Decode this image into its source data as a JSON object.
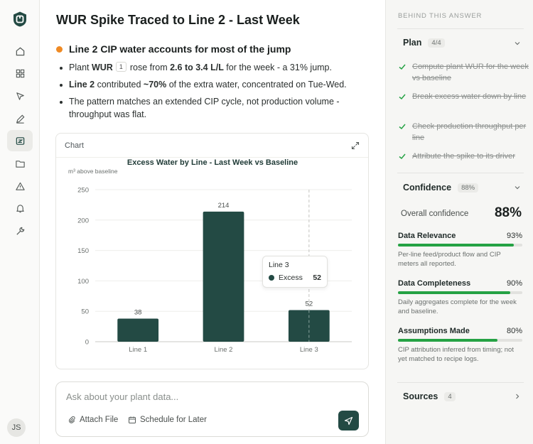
{
  "page": {
    "title": "WUR Spike Traced to Line 2 - Last Week",
    "headline": "Line 2 CIP water accounts for most of the jump",
    "bullet1": {
      "a": "Plant ",
      "b": "WUR",
      "cite": "1",
      "c": "rose from ",
      "d": "2.6 to 3.4 L/L",
      "e": " for the week - a 31% jump."
    },
    "bullet2": {
      "a": "Line 2",
      "b": " contributed ",
      "c": "~70%",
      "d": " of the extra water, concentrated on Tue-Wed."
    },
    "bullet3": "The pattern matches an extended CIP cycle, not production volume - throughput was flat."
  },
  "chart_card": {
    "label": "Chart",
    "tooltip": {
      "title": "Line 3",
      "series": "Excess",
      "value": "52"
    }
  },
  "chart_data": {
    "type": "bar",
    "title": "Excess Water by Line - Last Week vs Baseline",
    "ylabel": "m³ above baseline",
    "xlabel": "",
    "categories": [
      "Line 1",
      "Line 2",
      "Line 3"
    ],
    "values": [
      38,
      214,
      52
    ],
    "ylim": [
      0,
      250
    ],
    "yticks": [
      0,
      50,
      100,
      150,
      200,
      250
    ],
    "bar_color": "#234a44",
    "grid": true
  },
  "input": {
    "placeholder": "Ask about your plant data...",
    "attach": "Attach File",
    "schedule": "Schedule for Later"
  },
  "panel": {
    "title": "BEHIND THIS ANSWER",
    "plan_label": "Plan",
    "plan_count": "4/4",
    "plan_items": [
      "Compute plant WUR for the week vs baseline",
      "Break excess water down by line",
      "Check production throughput per line",
      "Attribute the spike to its driver"
    ],
    "confidence_label": "Confidence",
    "confidence_pill": "88%",
    "overall_label": "Overall confidence",
    "overall_value": "88%",
    "metrics": [
      {
        "name": "Data Relevance",
        "value": "93%",
        "pct": 0.93,
        "desc": "Per-line feed/product flow and CIP meters all reported."
      },
      {
        "name": "Data Completeness",
        "value": "90%",
        "pct": 0.9,
        "desc": "Daily aggregates complete for the week and baseline."
      },
      {
        "name": "Assumptions Made",
        "value": "80%",
        "pct": 0.8,
        "desc": "CIP attribution inferred from timing; not yet matched to recipe logs."
      }
    ],
    "sources_label": "Sources",
    "sources_count": "4"
  },
  "user": {
    "initials": "JS"
  },
  "colors": {
    "accent": "#234a44",
    "success": "#25a244",
    "dot": "#ef8a24"
  }
}
